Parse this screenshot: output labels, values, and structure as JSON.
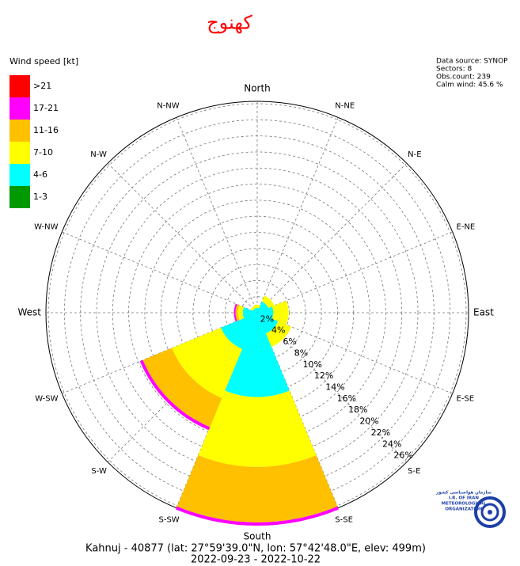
{
  "chart_data": {
    "type": "windrose",
    "title": "کهنوج",
    "legend_title": "Wind speed [kt]",
    "info": [
      "Data source: SYNOP",
      "Sectors: 8",
      "Obs.count: 239",
      "Calm wind: 45.6 %"
    ],
    "footer": [
      "Kahnuj - 40877 (lat: 27°59'39.0\"N, lon: 57°42'48.0\"E, elev: 499m)",
      "2022-09-23 - 2022-10-22"
    ],
    "logo_text": [
      "سازمان هواشناسی کشور",
      "I.R. OF IRAN",
      "METEOROLOGICAL",
      "ORGANIZATION"
    ],
    "directions": [
      "North",
      "N-NE",
      "N-E",
      "E-NE",
      "East",
      "E-SE",
      "S-E",
      "S-SE",
      "South",
      "S-SW",
      "S-W",
      "W-SW",
      "West",
      "W-NW",
      "N-W",
      "N-NW"
    ],
    "series": [
      {
        "name": "1-3",
        "color": "#009900",
        "values": [
          0,
          0,
          0,
          0,
          0,
          0,
          0,
          0
        ]
      },
      {
        "name": "4-6",
        "color": "#00ffff",
        "values": [
          0.6,
          1.5,
          2.0,
          2.8,
          10.5,
          4.9,
          1.8,
          0.6
        ]
      },
      {
        "name": "7-10",
        "color": "#ffff00",
        "values": [
          0.4,
          0.8,
          1.9,
          1.8,
          8.7,
          6.6,
          0.6,
          0.3
        ]
      },
      {
        "name": "11-16",
        "color": "#ffc000",
        "values": [
          0,
          0,
          0,
          0,
          6.9,
          3.9,
          0.3,
          0
        ]
      },
      {
        "name": "17-21",
        "color": "#ff00ff",
        "values": [
          0,
          0,
          0,
          0,
          0.4,
          0.4,
          0.2,
          0
        ]
      },
      {
        "name": ">21",
        "color": "#ff0000",
        "values": [
          0,
          0,
          0,
          0,
          0,
          0,
          0,
          0
        ]
      }
    ],
    "rlim": [
      0,
      26.3
    ],
    "rticks": [
      {
        "value": 2,
        "label": "2%"
      },
      {
        "value": 4,
        "label": "4%"
      },
      {
        "value": 6,
        "label": "6%"
      },
      {
        "value": 8,
        "label": "8%"
      },
      {
        "value": 10,
        "label": "10%"
      },
      {
        "value": 12,
        "label": "12%"
      },
      {
        "value": 14,
        "label": "14%"
      },
      {
        "value": 16,
        "label": "16%"
      },
      {
        "value": 18,
        "label": "18%"
      },
      {
        "value": 20,
        "label": "20%"
      },
      {
        "value": 22,
        "label": "22%"
      },
      {
        "value": 24,
        "label": "24%"
      },
      {
        "value": 26,
        "label": "26%"
      }
    ],
    "grid": true
  }
}
